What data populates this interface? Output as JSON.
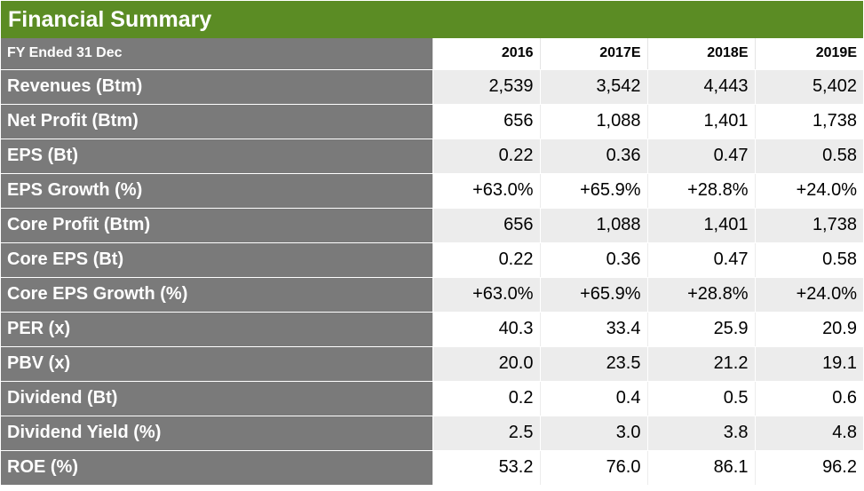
{
  "title": "Financial Summary",
  "header": {
    "label": "FY Ended 31 Dec",
    "years": [
      "2016",
      "2017E",
      "2018E",
      "2019E"
    ]
  },
  "rows": [
    {
      "label": "Revenues (Btm)",
      "values": [
        "2,539",
        "3,542",
        "4,443",
        "5,402"
      ]
    },
    {
      "label": "Net Profit (Btm)",
      "values": [
        "656",
        "1,088",
        "1,401",
        "1,738"
      ]
    },
    {
      "label": "EPS (Bt)",
      "values": [
        "0.22",
        "0.36",
        "0.47",
        "0.58"
      ]
    },
    {
      "label": "EPS Growth (%)",
      "values": [
        "+63.0%",
        "+65.9%",
        "+28.8%",
        "+24.0%"
      ]
    },
    {
      "label": "Core Profit (Btm)",
      "values": [
        "656",
        "1,088",
        "1,401",
        "1,738"
      ]
    },
    {
      "label": "Core EPS (Bt)",
      "values": [
        "0.22",
        "0.36",
        "0.47",
        "0.58"
      ]
    },
    {
      "label": "Core EPS Growth (%)",
      "values": [
        "+63.0%",
        "+65.9%",
        "+28.8%",
        "+24.0%"
      ]
    },
    {
      "label": "PER (x)",
      "values": [
        "40.3",
        "33.4",
        "25.9",
        "20.9"
      ]
    },
    {
      "label": "PBV (x)",
      "values": [
        "20.0",
        "23.5",
        "21.2",
        "19.1"
      ]
    },
    {
      "label": "Dividend (Bt)",
      "values": [
        "0.2",
        "0.4",
        "0.5",
        "0.6"
      ]
    },
    {
      "label": "Dividend Yield (%)",
      "values": [
        "2.5",
        "3.0",
        "3.8",
        "4.8"
      ]
    },
    {
      "label": "ROE (%)",
      "values": [
        "53.2",
        "76.0",
        "86.1",
        "96.2"
      ]
    }
  ],
  "colors": {
    "title_bg": "#5b8c24",
    "label_bg": "#7a7a7a",
    "stripe": "#ececec"
  }
}
